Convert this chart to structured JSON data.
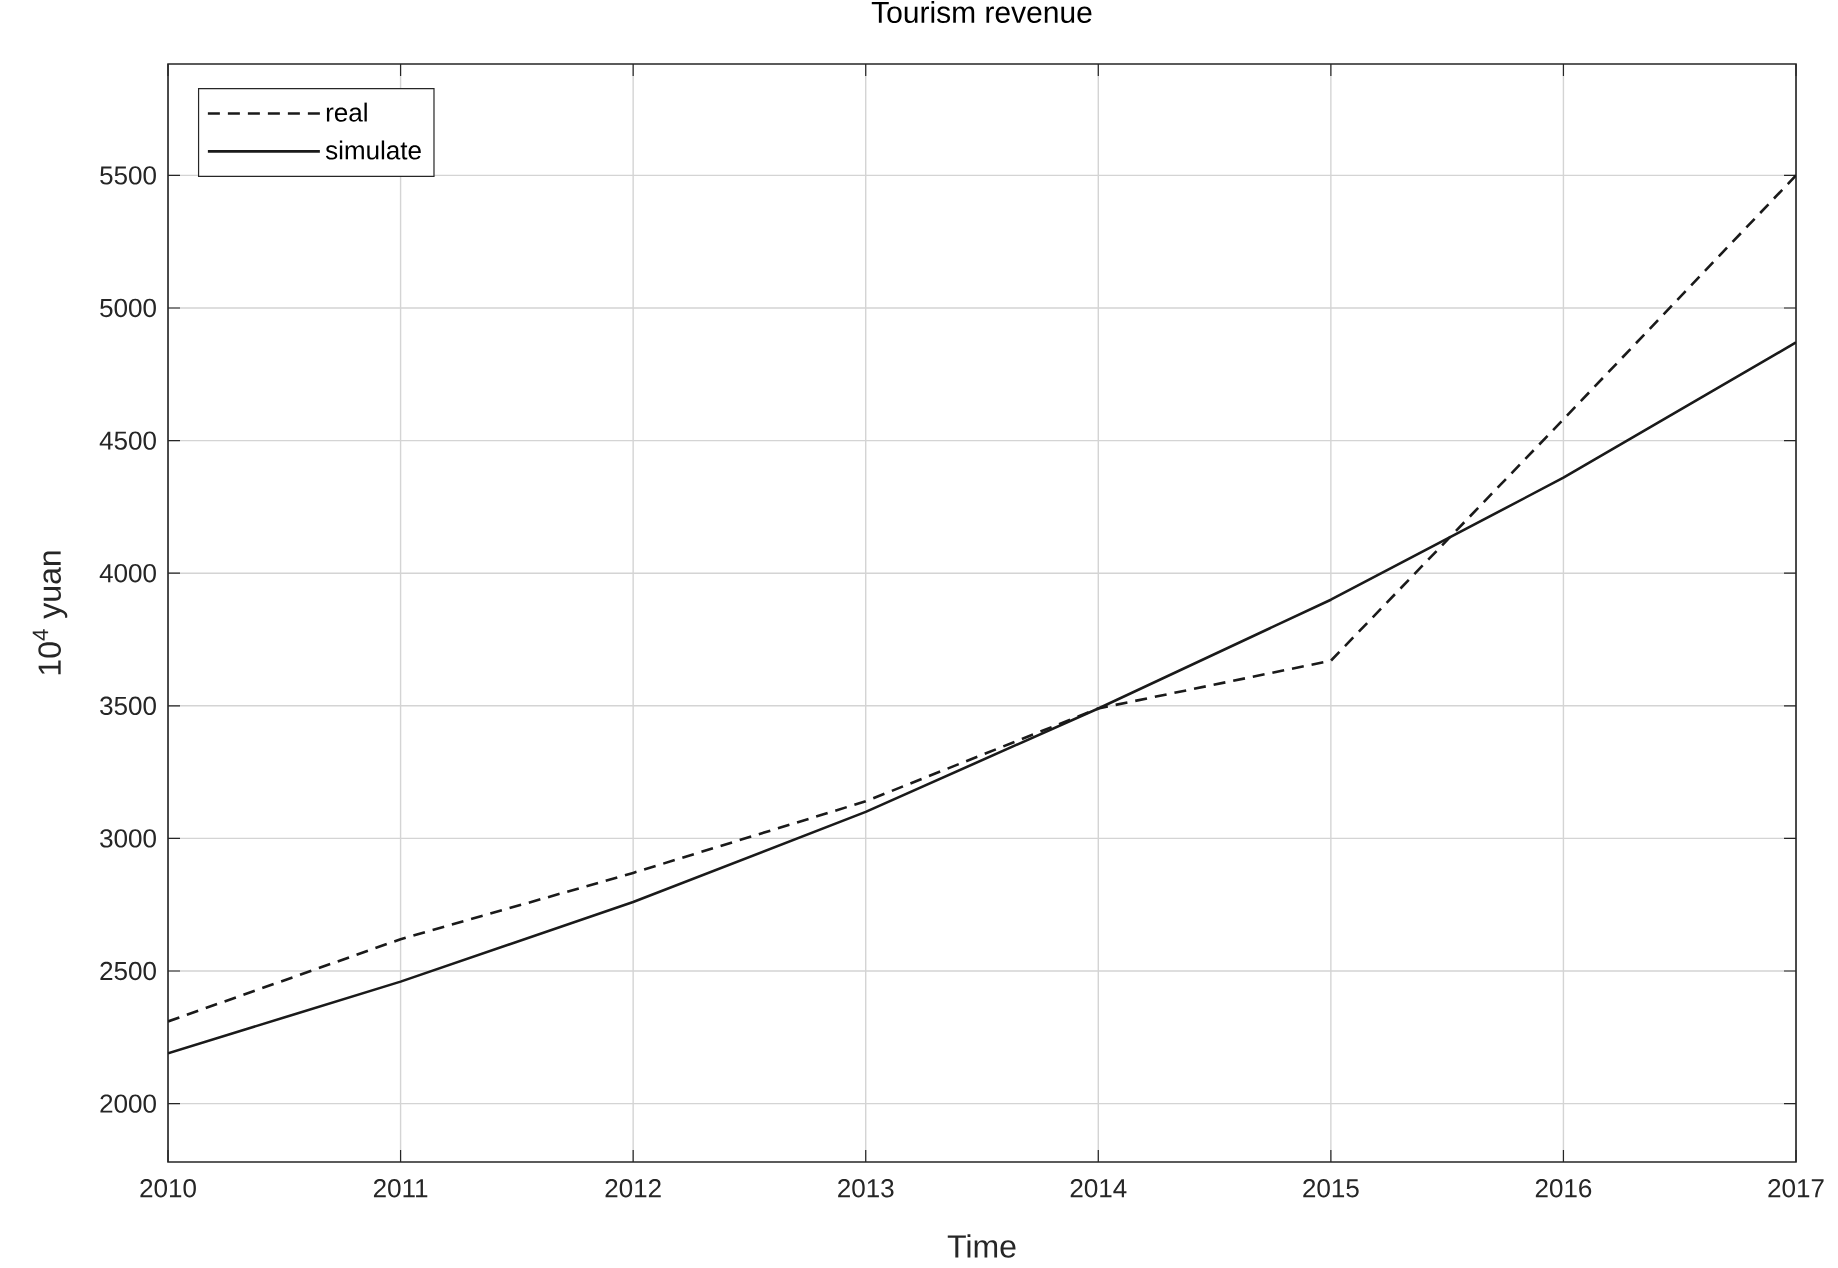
{
  "chart_data": {
    "type": "line",
    "title": "Tourism revenue",
    "xlabel": "Time",
    "ylabel": "10$^{4}$ yuan",
    "x": [
      2010,
      2011,
      2012,
      2013,
      2014,
      2015,
      2016,
      2017
    ],
    "series": [
      {
        "name": "real",
        "color": "#1a1a1a",
        "line_style": "dashed",
        "values": [
          2310,
          2620,
          2870,
          3140,
          3490,
          3670,
          4580,
          5500
        ]
      },
      {
        "name": "simulate",
        "color": "#1a1a1a",
        "line_style": "solid",
        "values": [
          2190,
          2460,
          2760,
          3100,
          3490,
          3900,
          4360,
          4870
        ]
      }
    ],
    "xlim": [
      2010,
      2017
    ],
    "ylim": [
      1780,
      5920
    ],
    "xticks": [
      2010,
      2011,
      2012,
      2013,
      2014,
      2015,
      2016,
      2017
    ],
    "yticks": [
      2000,
      2500,
      3000,
      3500,
      4000,
      4500,
      5000,
      5500
    ],
    "grid": true,
    "legend": "top left",
    "marker": "none"
  }
}
